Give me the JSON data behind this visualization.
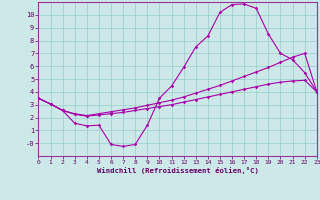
{
  "bg_color": "#cce8e8",
  "line_color": "#aa00aa",
  "grid_color": "#99cccc",
  "xlabel": "Windchill (Refroidissement éolien,°C)",
  "xlabel_color": "#660066",
  "tick_color": "#660066",
  "axis_color": "#993399",
  "xlim": [
    0,
    23
  ],
  "ylim": [
    -1,
    11
  ],
  "xticks": [
    0,
    1,
    2,
    3,
    4,
    5,
    6,
    7,
    8,
    9,
    10,
    11,
    12,
    13,
    14,
    15,
    16,
    17,
    18,
    19,
    20,
    21,
    22,
    23
  ],
  "yticks": [
    0,
    1,
    2,
    3,
    4,
    5,
    6,
    7,
    8,
    9,
    10
  ],
  "ytick_labels": [
    "-0",
    "1",
    "2",
    "3",
    "4",
    "5",
    "6",
    "7",
    "8",
    "9",
    "10"
  ],
  "curve1_x": [
    0,
    1,
    2,
    3,
    4,
    5,
    6,
    7,
    8,
    9,
    10,
    11,
    12,
    13,
    14,
    15,
    16,
    17,
    18,
    19,
    20,
    21,
    22,
    23
  ],
  "curve1_y": [
    3.5,
    3.05,
    2.55,
    1.55,
    1.35,
    1.4,
    -0.1,
    -0.25,
    -0.1,
    1.4,
    3.5,
    4.45,
    5.9,
    7.5,
    8.35,
    10.2,
    10.8,
    10.85,
    10.5,
    8.5,
    7.0,
    6.5,
    5.5,
    4.0
  ],
  "curve2_x": [
    0,
    1,
    2,
    3,
    4,
    5,
    6,
    7,
    8,
    9,
    10,
    11,
    12,
    13,
    14,
    15,
    16,
    17,
    18,
    19,
    20,
    21,
    22,
    23
  ],
  "curve2_y": [
    3.5,
    3.05,
    2.55,
    2.25,
    2.1,
    2.2,
    2.3,
    2.4,
    2.55,
    2.7,
    2.85,
    3.0,
    3.2,
    3.4,
    3.6,
    3.8,
    4.0,
    4.2,
    4.4,
    4.6,
    4.75,
    4.85,
    4.9,
    4.0
  ],
  "curve3_x": [
    0,
    1,
    2,
    3,
    4,
    5,
    6,
    7,
    8,
    9,
    10,
    11,
    12,
    13,
    14,
    15,
    16,
    17,
    18,
    19,
    20,
    21,
    22,
    23
  ],
  "curve3_y": [
    3.5,
    3.05,
    2.55,
    2.3,
    2.15,
    2.3,
    2.45,
    2.6,
    2.75,
    2.95,
    3.15,
    3.35,
    3.6,
    3.9,
    4.2,
    4.5,
    4.85,
    5.2,
    5.55,
    5.9,
    6.3,
    6.7,
    7.0,
    4.0
  ]
}
